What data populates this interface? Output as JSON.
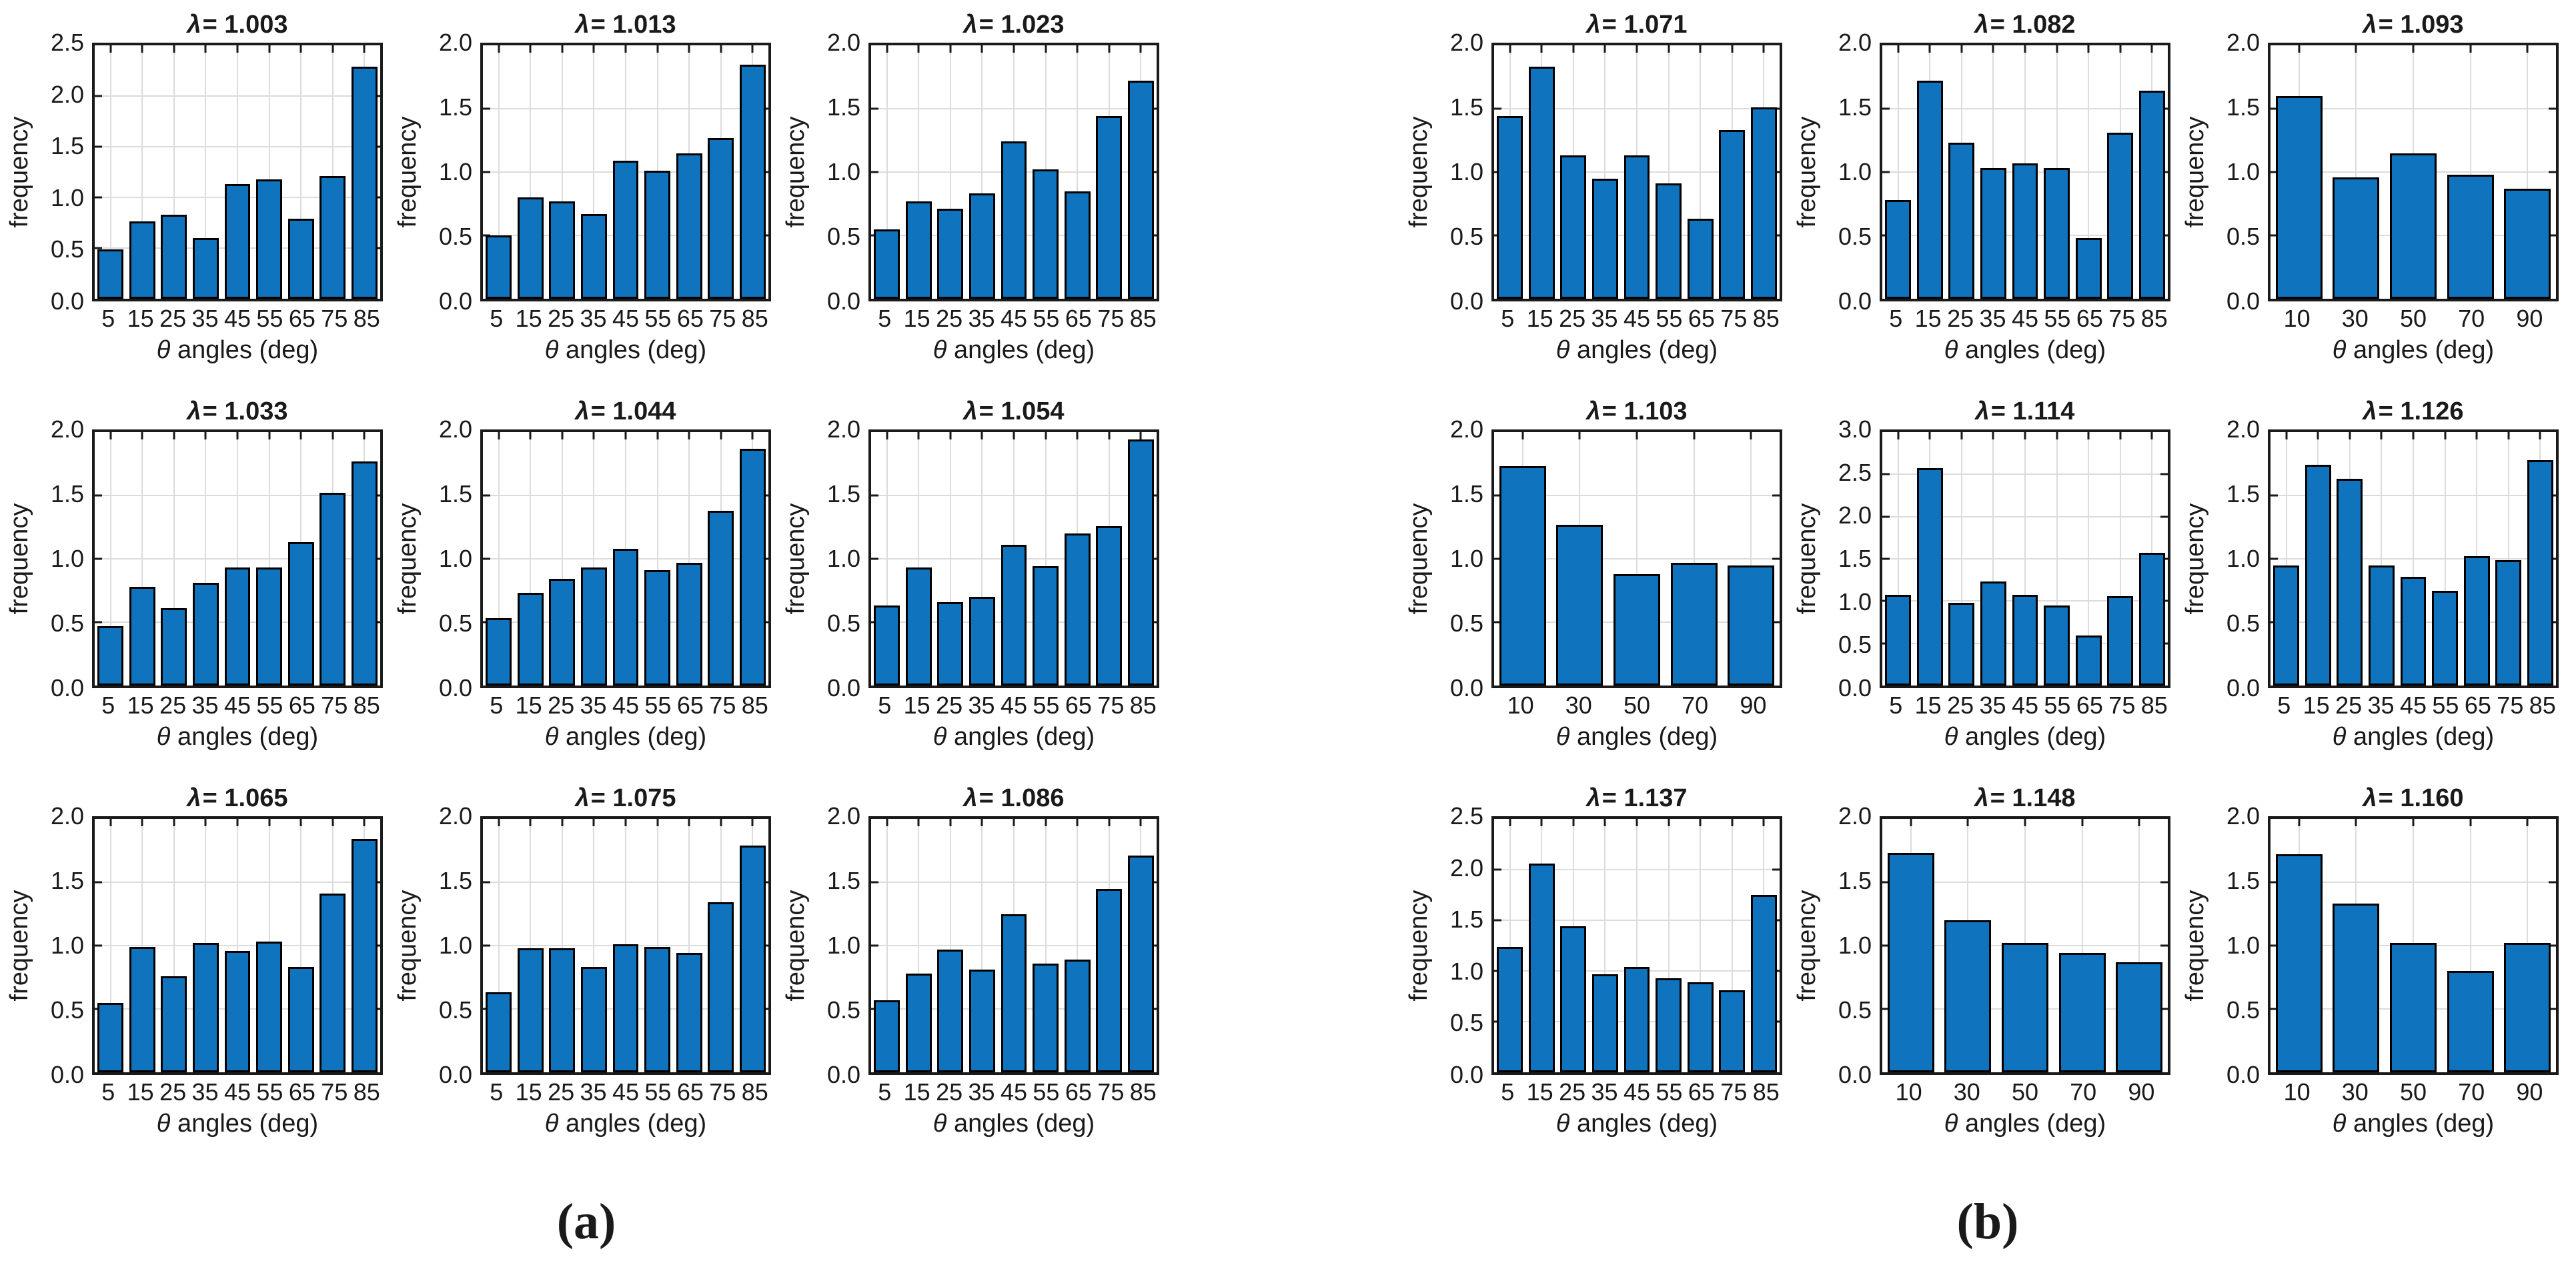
{
  "figure": {
    "background": "#ffffff",
    "text_color": "#1a1a1a",
    "panel_a_label": "(a)",
    "panel_b_label": "(b)",
    "ylabel": "frequency",
    "xlabel": "θ angles (deg)",
    "title_prefix": "λ",
    "colors": {
      "bar_fill": "#0f74bd",
      "bar_edge": "#000000",
      "axis": "#1a1a1a",
      "grid": "#dcdcdc"
    }
  },
  "chart_data": [
    {
      "type": "bar",
      "panel": "a",
      "title": "λ = 1.003",
      "ylabel": "frequency",
      "xlabel": "θ angles (deg)",
      "categories": [
        "5",
        "15",
        "25",
        "35",
        "45",
        "55",
        "65",
        "75",
        "85"
      ],
      "values": [
        0.49,
        0.76,
        0.83,
        0.6,
        1.13,
        1.18,
        0.79,
        1.21,
        2.29
      ],
      "ylim": [
        0,
        2.5
      ],
      "yticks": [
        0,
        0.5,
        1.0,
        1.5,
        2.0,
        2.5
      ],
      "grid": true,
      "legend": false
    },
    {
      "type": "bar",
      "panel": "a",
      "title": "λ = 1.013",
      "ylabel": "frequency",
      "xlabel": "θ angles (deg)",
      "categories": [
        "5",
        "15",
        "25",
        "35",
        "45",
        "55",
        "65",
        "75",
        "85"
      ],
      "values": [
        0.5,
        0.8,
        0.77,
        0.67,
        1.09,
        1.01,
        1.15,
        1.27,
        1.85
      ],
      "ylim": [
        0,
        2.0
      ],
      "yticks": [
        0,
        0.5,
        1.0,
        1.5,
        2.0
      ],
      "grid": true,
      "legend": false
    },
    {
      "type": "bar",
      "panel": "a",
      "title": "λ = 1.023",
      "ylabel": "frequency",
      "xlabel": "θ angles (deg)",
      "categories": [
        "5",
        "15",
        "25",
        "35",
        "45",
        "55",
        "65",
        "75",
        "85"
      ],
      "values": [
        0.55,
        0.77,
        0.71,
        0.83,
        1.24,
        1.02,
        0.85,
        1.44,
        1.72
      ],
      "ylim": [
        0,
        2.0
      ],
      "yticks": [
        0,
        0.5,
        1.0,
        1.5,
        2.0
      ],
      "grid": true,
      "legend": false
    },
    {
      "type": "bar",
      "panel": "a",
      "title": "λ = 1.033",
      "ylabel": "frequency",
      "xlabel": "θ angles (deg)",
      "categories": [
        "5",
        "15",
        "25",
        "35",
        "45",
        "55",
        "65",
        "75",
        "85"
      ],
      "values": [
        0.47,
        0.78,
        0.61,
        0.81,
        0.93,
        0.93,
        1.13,
        1.52,
        1.77
      ],
      "ylim": [
        0,
        2.0
      ],
      "yticks": [
        0,
        0.5,
        1.0,
        1.5,
        2.0
      ],
      "grid": true,
      "legend": false
    },
    {
      "type": "bar",
      "panel": "a",
      "title": "λ = 1.044",
      "ylabel": "frequency",
      "xlabel": "θ angles (deg)",
      "categories": [
        "5",
        "15",
        "25",
        "35",
        "45",
        "55",
        "65",
        "75",
        "85"
      ],
      "values": [
        0.53,
        0.73,
        0.84,
        0.93,
        1.08,
        0.91,
        0.97,
        1.38,
        1.87
      ],
      "ylim": [
        0,
        2.0
      ],
      "yticks": [
        0,
        0.5,
        1.0,
        1.5,
        2.0
      ],
      "grid": true,
      "legend": false
    },
    {
      "type": "bar",
      "panel": "a",
      "title": "λ = 1.054",
      "ylabel": "frequency",
      "xlabel": "θ angles (deg)",
      "categories": [
        "5",
        "15",
        "25",
        "35",
        "45",
        "55",
        "65",
        "75",
        "85"
      ],
      "values": [
        0.63,
        0.93,
        0.66,
        0.7,
        1.11,
        0.94,
        1.2,
        1.26,
        1.94
      ],
      "ylim": [
        0,
        2.0
      ],
      "yticks": [
        0,
        0.5,
        1.0,
        1.5,
        2.0
      ],
      "grid": true,
      "legend": false
    },
    {
      "type": "bar",
      "panel": "a",
      "title": "λ = 1.065",
      "ylabel": "frequency",
      "xlabel": "θ angles (deg)",
      "categories": [
        "5",
        "15",
        "25",
        "35",
        "45",
        "55",
        "65",
        "75",
        "85"
      ],
      "values": [
        0.55,
        0.99,
        0.76,
        1.02,
        0.96,
        1.03,
        0.83,
        1.41,
        1.84
      ],
      "ylim": [
        0,
        2.0
      ],
      "yticks": [
        0,
        0.5,
        1.0,
        1.5,
        2.0
      ],
      "grid": true,
      "legend": false
    },
    {
      "type": "bar",
      "panel": "a",
      "title": "λ = 1.075",
      "ylabel": "frequency",
      "xlabel": "θ angles (deg)",
      "categories": [
        "5",
        "15",
        "25",
        "35",
        "45",
        "55",
        "65",
        "75",
        "85"
      ],
      "values": [
        0.63,
        0.98,
        0.98,
        0.83,
        1.01,
        0.99,
        0.94,
        1.34,
        1.79
      ],
      "ylim": [
        0,
        2.0
      ],
      "yticks": [
        0,
        0.5,
        1.0,
        1.5,
        2.0
      ],
      "grid": true,
      "legend": false
    },
    {
      "type": "bar",
      "panel": "a",
      "title": "λ = 1.086",
      "ylabel": "frequency",
      "xlabel": "θ angles (deg)",
      "categories": [
        "5",
        "15",
        "25",
        "35",
        "45",
        "55",
        "65",
        "75",
        "85"
      ],
      "values": [
        0.57,
        0.78,
        0.97,
        0.81,
        1.25,
        0.86,
        0.89,
        1.45,
        1.71
      ],
      "ylim": [
        0,
        2.0
      ],
      "yticks": [
        0,
        0.5,
        1.0,
        1.5,
        2.0
      ],
      "grid": true,
      "legend": false
    },
    {
      "type": "bar",
      "panel": "b",
      "title": "λ = 1.071",
      "ylabel": "frequency",
      "xlabel": "θ angles (deg)",
      "categories": [
        "5",
        "15",
        "25",
        "35",
        "45",
        "55",
        "65",
        "75",
        "85"
      ],
      "values": [
        1.44,
        1.83,
        1.13,
        0.95,
        1.13,
        0.91,
        0.63,
        1.33,
        1.51
      ],
      "ylim": [
        0,
        2.0
      ],
      "yticks": [
        0,
        0.5,
        1.0,
        1.5,
        2.0
      ],
      "grid": true,
      "legend": false
    },
    {
      "type": "bar",
      "panel": "b",
      "title": "λ = 1.082",
      "ylabel": "frequency",
      "xlabel": "θ angles (deg)",
      "categories": [
        "5",
        "15",
        "25",
        "35",
        "45",
        "55",
        "65",
        "75",
        "85"
      ],
      "values": [
        0.78,
        1.72,
        1.23,
        1.03,
        1.07,
        1.03,
        0.48,
        1.31,
        1.64
      ],
      "ylim": [
        0,
        2.0
      ],
      "yticks": [
        0,
        0.5,
        1.0,
        1.5,
        2.0
      ],
      "grid": true,
      "legend": false
    },
    {
      "type": "bar",
      "panel": "b",
      "title": "λ = 1.093",
      "ylabel": "frequency",
      "xlabel": "θ angles (deg)",
      "categories": [
        "10",
        "30",
        "50",
        "70",
        "90"
      ],
      "values": [
        1.6,
        0.96,
        1.15,
        0.98,
        0.87
      ],
      "ylim": [
        0,
        2.0
      ],
      "yticks": [
        0,
        0.5,
        1.0,
        1.5,
        2.0
      ],
      "grid": true,
      "legend": false
    },
    {
      "type": "bar",
      "panel": "b",
      "title": "λ = 1.103",
      "ylabel": "frequency",
      "xlabel": "θ angles (deg)",
      "categories": [
        "10",
        "30",
        "50",
        "70",
        "90"
      ],
      "values": [
        1.73,
        1.27,
        0.88,
        0.97,
        0.95
      ],
      "ylim": [
        0,
        2.0
      ],
      "yticks": [
        0,
        0.5,
        1.0,
        1.5,
        2.0
      ],
      "grid": true,
      "legend": false
    },
    {
      "type": "bar",
      "panel": "b",
      "title": "λ = 1.114",
      "ylabel": "frequency",
      "xlabel": "θ angles (deg)",
      "categories": [
        "5",
        "15",
        "25",
        "35",
        "45",
        "55",
        "65",
        "75",
        "85"
      ],
      "values": [
        1.07,
        2.57,
        0.98,
        1.23,
        1.07,
        0.95,
        0.59,
        1.06,
        1.57
      ],
      "ylim": [
        0,
        3.0
      ],
      "yticks": [
        0,
        0.5,
        1.0,
        1.5,
        2.0,
        2.5,
        3.0
      ],
      "grid": true,
      "legend": false
    },
    {
      "type": "bar",
      "panel": "b",
      "title": "λ = 1.126",
      "ylabel": "frequency",
      "xlabel": "θ angles (deg)",
      "categories": [
        "5",
        "15",
        "25",
        "35",
        "45",
        "55",
        "65",
        "75",
        "85"
      ],
      "values": [
        0.95,
        1.74,
        1.63,
        0.95,
        0.86,
        0.75,
        1.02,
        0.99,
        1.78
      ],
      "ylim": [
        0,
        2.0
      ],
      "yticks": [
        0,
        0.5,
        1.0,
        1.5,
        2.0
      ],
      "grid": true,
      "legend": false
    },
    {
      "type": "bar",
      "panel": "b",
      "title": "λ = 1.137",
      "ylabel": "frequency",
      "xlabel": "θ angles (deg)",
      "categories": [
        "5",
        "15",
        "25",
        "35",
        "45",
        "55",
        "65",
        "75",
        "85"
      ],
      "values": [
        1.24,
        2.06,
        1.44,
        0.97,
        1.04,
        0.93,
        0.89,
        0.81,
        1.75
      ],
      "ylim": [
        0,
        2.5
      ],
      "yticks": [
        0,
        0.5,
        1.0,
        1.5,
        2.0,
        2.5
      ],
      "grid": true,
      "legend": false
    },
    {
      "type": "bar",
      "panel": "b",
      "title": "λ = 1.148",
      "ylabel": "frequency",
      "xlabel": "θ angles (deg)",
      "categories": [
        "10",
        "30",
        "50",
        "70",
        "90"
      ],
      "values": [
        1.73,
        1.2,
        1.02,
        0.94,
        0.87
      ],
      "ylim": [
        0,
        2.0
      ],
      "yticks": [
        0,
        0.5,
        1.0,
        1.5,
        2.0
      ],
      "grid": true,
      "legend": false
    },
    {
      "type": "bar",
      "panel": "b",
      "title": "λ = 1.160",
      "ylabel": "frequency",
      "xlabel": "θ angles (deg)",
      "categories": [
        "10",
        "30",
        "50",
        "70",
        "90"
      ],
      "values": [
        1.72,
        1.33,
        1.02,
        0.8,
        1.02
      ],
      "ylim": [
        0,
        2.0
      ],
      "yticks": [
        0,
        0.5,
        1.0,
        1.5,
        2.0
      ],
      "grid": true,
      "legend": false
    }
  ]
}
